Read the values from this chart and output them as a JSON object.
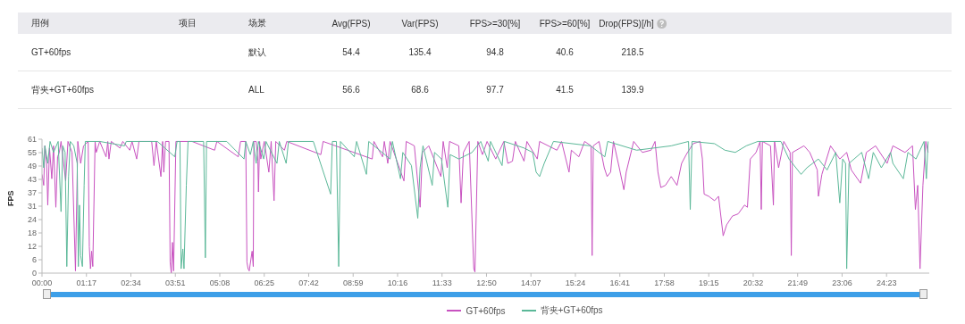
{
  "chart_data": {
    "type": "line",
    "xlabel": null,
    "ylabel": "FPS",
    "annotations": [
      "用例",
      "项目",
      "场景",
      "Avg(FPS)",
      "Var(FPS)",
      "FPS>=30[%]",
      "FPS>=60[%]",
      "Drop(FPS)[/h]",
      "GT+60fps",
      "默认",
      "54.4",
      "135.4",
      "94.8",
      "40.6",
      "218.5",
      "背夹+GT+60fps",
      "ALL",
      "56.6",
      "68.6",
      "97.7",
      "41.5",
      "139.9"
    ],
    "xlim": [
      0,
      1537
    ],
    "xticks": [
      {
        "value": 0,
        "label": "00:00"
      },
      {
        "value": 77,
        "label": "01:17"
      },
      {
        "value": 154,
        "label": "02:34"
      },
      {
        "value": 231,
        "label": "03:51"
      },
      {
        "value": 308,
        "label": "05:08"
      },
      {
        "value": 385,
        "label": "06:25"
      },
      {
        "value": 462,
        "label": "07:42"
      },
      {
        "value": 539,
        "label": "08:59"
      },
      {
        "value": 616,
        "label": "10:16"
      },
      {
        "value": 693,
        "label": "11:33"
      },
      {
        "value": 770,
        "label": "12:50"
      },
      {
        "value": 847,
        "label": "14:07"
      },
      {
        "value": 924,
        "label": "15:24"
      },
      {
        "value": 1001,
        "label": "16:41"
      },
      {
        "value": 1078,
        "label": "17:58"
      },
      {
        "value": 1155,
        "label": "19:15"
      },
      {
        "value": 1232,
        "label": "20:32"
      },
      {
        "value": 1309,
        "label": "21:49"
      },
      {
        "value": 1386,
        "label": "23:06"
      },
      {
        "value": 1463,
        "label": "24:23"
      }
    ],
    "ylim": [
      0,
      61
    ],
    "yticks": [
      0,
      {
        "value": 6.1,
        "label": "6"
      },
      {
        "value": 12.2,
        "label": "12"
      },
      {
        "value": 18.3,
        "label": "18"
      },
      {
        "value": 24.4,
        "label": "24"
      },
      {
        "value": 30.5,
        "label": "31"
      },
      {
        "value": 36.6,
        "label": "37"
      },
      {
        "value": 42.7,
        "label": "43"
      },
      {
        "value": 48.8,
        "label": "49"
      },
      {
        "value": 54.9,
        "label": "55"
      },
      61
    ],
    "legend": "bottom",
    "marker": "none",
    "line_style": "solid",
    "series": [
      {
        "name": "GT+60fps",
        "color": "#c852c0",
        "x": [
          0,
          3,
          5,
          8,
          10,
          13,
          17,
          20,
          24,
          27,
          30,
          33,
          41,
          45,
          52,
          58,
          62,
          67,
          72,
          80,
          82,
          84,
          86,
          88,
          92,
          94,
          100,
          111,
          114,
          116,
          120,
          135,
          140,
          152,
          156,
          164,
          168,
          190,
          194,
          198,
          206,
          209,
          211,
          214,
          220,
          222,
          224,
          226,
          228,
          232,
          260,
          299,
          303,
          340,
          344,
          353,
          355,
          357,
          359,
          364,
          366,
          367,
          371,
          374,
          375,
          377,
          379,
          385,
          393,
          397,
          402,
          405,
          420,
          424,
          483,
          487,
          572,
          575,
          590,
          593,
          599,
          603,
          627,
          631,
          645,
          655,
          659,
          670,
          691,
          695,
          702,
          706,
          722,
          726,
          730,
          740,
          748,
          750,
          755,
          763,
          771,
          786,
          800,
          807,
          815,
          820,
          835,
          840,
          858,
          862,
          892,
          900,
          913,
          917,
          930,
          940,
          951,
          953,
          955,
          965,
          974,
          979,
          985,
          990,
          1000,
          1008,
          1012,
          1025,
          1040,
          1055,
          1062,
          1067,
          1072,
          1080,
          1090,
          1100,
          1108,
          1116,
          1128,
          1140,
          1144,
          1147,
          1155,
          1165,
          1172,
          1180,
          1186,
          1196,
          1206,
          1217,
          1222,
          1227,
          1237,
          1244,
          1246,
          1248,
          1262,
          1267,
          1269,
          1276,
          1285,
          1296,
          1298,
          1300,
          1320,
          1330,
          1343,
          1345,
          1351,
          1366,
          1382,
          1394,
          1402,
          1418,
          1428,
          1444,
          1464,
          1474,
          1495,
          1508,
          1513,
          1517,
          1521,
          1526,
          1531,
          1535
        ],
        "values": [
          45,
          40,
          58,
          50,
          31,
          57,
          43,
          58,
          30,
          53,
          55,
          60,
          42,
          60,
          55,
          1,
          60,
          50,
          58,
          60,
          12,
          2,
          10,
          3,
          60,
          55,
          60,
          53,
          60,
          52,
          60,
          57,
          60,
          56,
          60,
          52,
          60,
          60,
          49,
          60,
          44,
          60,
          46,
          60,
          60,
          5,
          0,
          14,
          1,
          60,
          60,
          56,
          60,
          53,
          60,
          60,
          5,
          2,
          1,
          10,
          3,
          60,
          60,
          51,
          37,
          60,
          52,
          60,
          46,
          60,
          33,
          60,
          56,
          60,
          54,
          60,
          52,
          60,
          53,
          60,
          50,
          60,
          42,
          60,
          58,
          30,
          55,
          58,
          44,
          60,
          48,
          60,
          58,
          32,
          55,
          60,
          2,
          0.5,
          60,
          54,
          60,
          52,
          60,
          50,
          51,
          60,
          51,
          60,
          52,
          60,
          56,
          60,
          46,
          56,
          53,
          60,
          58,
          8,
          58,
          60,
          48,
          44,
          46,
          60,
          48,
          38,
          46,
          60,
          55,
          56,
          60,
          46,
          39,
          40,
          44,
          40,
          50,
          54,
          59,
          60,
          52,
          36,
          35,
          33,
          35,
          17,
          22,
          26,
          27,
          31,
          30,
          52,
          55,
          60,
          29,
          60,
          58,
          31,
          60,
          48,
          60,
          55,
          8,
          55,
          58,
          55,
          47,
          35,
          45,
          58,
          52,
          55,
          47,
          41,
          55,
          58,
          50,
          58,
          55,
          58,
          29,
          40,
          2,
          40,
          60,
          55
        ]
      },
      {
        "name": "背夹+GT+60fps",
        "color": "#5bb898",
        "x": [
          0,
          3,
          5,
          10,
          14,
          20,
          28,
          33,
          36,
          40,
          43,
          46,
          49,
          55,
          61,
          63,
          65,
          67,
          70,
          73,
          75,
          100,
          143,
          146,
          200,
          230,
          234,
          239,
          241,
          244,
          246,
          250,
          253,
          280,
          283,
          285,
          320,
          350,
          353,
          361,
          366,
          371,
          375,
          384,
          388,
          407,
          411,
          423,
          427,
          470,
          500,
          503,
          510,
          514,
          517,
          541,
          545,
          562,
          566,
          603,
          607,
          621,
          625,
          640,
          651,
          655,
          660,
          676,
          680,
          692,
          703,
          707,
          722,
          745,
          760,
          773,
          777,
          797,
          801,
          835,
          850,
          856,
          862,
          870,
          886,
          950,
          975,
          980,
          1030,
          1090,
          1120,
          1123,
          1126,
          1165,
          1183,
          1201,
          1220,
          1240,
          1280,
          1294,
          1315,
          1325,
          1345,
          1360,
          1375,
          1382,
          1387,
          1392,
          1394,
          1398,
          1420,
          1432,
          1440,
          1454,
          1470,
          1474,
          1492,
          1500,
          1514,
          1528,
          1532,
          1535
        ],
        "values": [
          57,
          48,
          58,
          50,
          60,
          55,
          60,
          28,
          58,
          55,
          3,
          44,
          60,
          58,
          50,
          3,
          31,
          8,
          3,
          40,
          60,
          60,
          58,
          60,
          60,
          53,
          60,
          60,
          2,
          11,
          2,
          40,
          60,
          60,
          7,
          60,
          60,
          52,
          60,
          54,
          60,
          50,
          60,
          52,
          60,
          50,
          60,
          50,
          60,
          60,
          36,
          60,
          60,
          3,
          60,
          53,
          60,
          45,
          60,
          52,
          60,
          43,
          55,
          49,
          25,
          48,
          58,
          40,
          55,
          52,
          30,
          54,
          52,
          55,
          60,
          51,
          60,
          49,
          60,
          57,
          55,
          46,
          44,
          50,
          60,
          58,
          53,
          60,
          56,
          58,
          60,
          29,
          60,
          59,
          56,
          55,
          58,
          60,
          60,
          52,
          45,
          48,
          52,
          47,
          55,
          32,
          52,
          50,
          2,
          50,
          55,
          43,
          55,
          48,
          55,
          50,
          43,
          55,
          52,
          60,
          43,
          60
        ]
      }
    ]
  }
}
